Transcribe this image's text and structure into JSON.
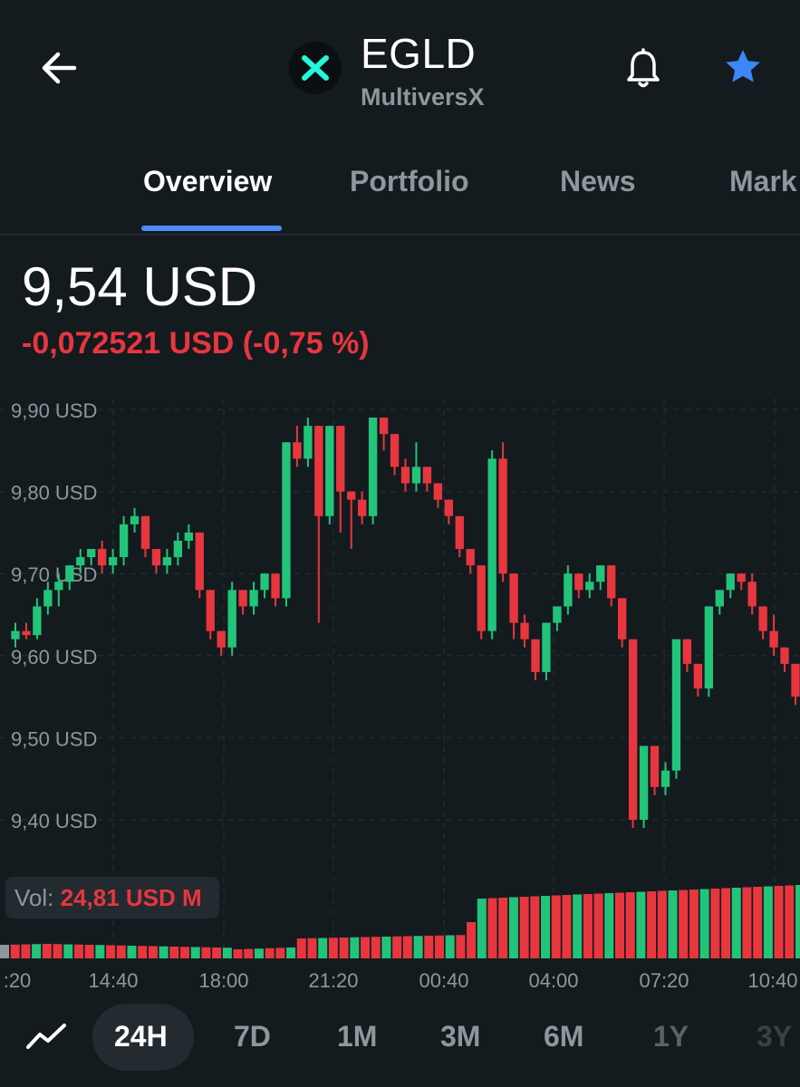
{
  "header": {
    "coin_symbol": "EGLD",
    "coin_name": "MultiversX"
  },
  "tabs": [
    "Overview",
    "Portfolio",
    "News",
    "Mark"
  ],
  "active_tab": "Overview",
  "price": {
    "value": "9,54 USD",
    "change": "-0,072521 USD (-0,75 %)"
  },
  "volume": {
    "label": "Vol:",
    "value": "24,81 USD M"
  },
  "colors": {
    "up": "#22c47a",
    "down": "#e8363f",
    "accent": "#4e8cf7",
    "background": "#141b1f"
  },
  "ranges": [
    "24H",
    "7D",
    "1M",
    "3M",
    "6M",
    "1Y",
    "3Y"
  ],
  "active_range": "24H",
  "chart_data": {
    "type": "candlestick",
    "y_ticks": [
      "9,90 USD",
      "9,80 USD",
      "9,70 USD",
      "9,60 USD",
      "9,50 USD",
      "9,40 USD"
    ],
    "y_tick_values": [
      9.9,
      9.8,
      9.7,
      9.6,
      9.5,
      9.4
    ],
    "x_ticks": [
      ":20",
      "14:40",
      "18:00",
      "21:20",
      "00:40",
      "04:00",
      "07:20",
      "10:40"
    ],
    "candles": [
      [
        9.62,
        9.63,
        9.61,
        9.64
      ],
      [
        9.63,
        9.625,
        9.62,
        9.64
      ],
      [
        9.625,
        9.66,
        9.62,
        9.67
      ],
      [
        9.66,
        9.68,
        9.65,
        9.69
      ],
      [
        9.68,
        9.69,
        9.66,
        9.7
      ],
      [
        9.69,
        9.71,
        9.68,
        9.71
      ],
      [
        9.71,
        9.72,
        9.7,
        9.73
      ],
      [
        9.72,
        9.73,
        9.71,
        9.73
      ],
      [
        9.73,
        9.71,
        9.7,
        9.74
      ],
      [
        9.71,
        9.72,
        9.7,
        9.73
      ],
      [
        9.72,
        9.76,
        9.71,
        9.77
      ],
      [
        9.76,
        9.77,
        9.75,
        9.78
      ],
      [
        9.77,
        9.73,
        9.72,
        9.77
      ],
      [
        9.73,
        9.71,
        9.7,
        9.73
      ],
      [
        9.71,
        9.72,
        9.7,
        9.73
      ],
      [
        9.72,
        9.74,
        9.71,
        9.75
      ],
      [
        9.74,
        9.75,
        9.73,
        9.76
      ],
      [
        9.75,
        9.68,
        9.67,
        9.75
      ],
      [
        9.68,
        9.63,
        9.62,
        9.68
      ],
      [
        9.63,
        9.61,
        9.6,
        9.63
      ],
      [
        9.61,
        9.68,
        9.6,
        9.69
      ],
      [
        9.68,
        9.66,
        9.65,
        9.68
      ],
      [
        9.66,
        9.68,
        9.65,
        9.69
      ],
      [
        9.68,
        9.7,
        9.67,
        9.7
      ],
      [
        9.7,
        9.67,
        9.66,
        9.7
      ],
      [
        9.67,
        9.86,
        9.66,
        9.86
      ],
      [
        9.86,
        9.84,
        9.83,
        9.88
      ],
      [
        9.84,
        9.88,
        9.83,
        9.89
      ],
      [
        9.88,
        9.77,
        9.64,
        9.88
      ],
      [
        9.77,
        9.88,
        9.76,
        9.88
      ],
      [
        9.88,
        9.8,
        9.75,
        9.88
      ],
      [
        9.8,
        9.79,
        9.73,
        9.8
      ],
      [
        9.79,
        9.77,
        9.76,
        9.8
      ],
      [
        9.77,
        9.89,
        9.76,
        9.89
      ],
      [
        9.89,
        9.87,
        9.85,
        9.89
      ],
      [
        9.87,
        9.83,
        9.82,
        9.87
      ],
      [
        9.83,
        9.81,
        9.8,
        9.84
      ],
      [
        9.81,
        9.83,
        9.8,
        9.86
      ],
      [
        9.83,
        9.81,
        9.8,
        9.83
      ],
      [
        9.81,
        9.79,
        9.78,
        9.81
      ],
      [
        9.79,
        9.77,
        9.76,
        9.79
      ],
      [
        9.77,
        9.73,
        9.72,
        9.77
      ],
      [
        9.73,
        9.71,
        9.7,
        9.73
      ],
      [
        9.71,
        9.63,
        9.62,
        9.71
      ],
      [
        9.63,
        9.84,
        9.62,
        9.85
      ],
      [
        9.84,
        9.7,
        9.69,
        9.86
      ],
      [
        9.7,
        9.64,
        9.62,
        9.7
      ],
      [
        9.64,
        9.62,
        9.61,
        9.65
      ],
      [
        9.62,
        9.58,
        9.57,
        9.62
      ],
      [
        9.58,
        9.64,
        9.57,
        9.64
      ],
      [
        9.64,
        9.66,
        9.63,
        9.66
      ],
      [
        9.66,
        9.7,
        9.65,
        9.71
      ],
      [
        9.7,
        9.68,
        9.67,
        9.7
      ],
      [
        9.68,
        9.69,
        9.67,
        9.7
      ],
      [
        9.69,
        9.71,
        9.68,
        9.71
      ],
      [
        9.71,
        9.67,
        9.66,
        9.71
      ],
      [
        9.67,
        9.62,
        9.61,
        9.67
      ],
      [
        9.62,
        9.4,
        9.39,
        9.62
      ],
      [
        9.4,
        9.49,
        9.39,
        9.49
      ],
      [
        9.49,
        9.44,
        9.43,
        9.49
      ],
      [
        9.44,
        9.46,
        9.43,
        9.47
      ],
      [
        9.46,
        9.62,
        9.45,
        9.62
      ],
      [
        9.62,
        9.59,
        9.58,
        9.62
      ],
      [
        9.59,
        9.56,
        9.55,
        9.59
      ],
      [
        9.56,
        9.66,
        9.55,
        9.66
      ],
      [
        9.66,
        9.68,
        9.65,
        9.68
      ],
      [
        9.68,
        9.7,
        9.67,
        9.7
      ],
      [
        9.7,
        9.69,
        9.68,
        9.7
      ],
      [
        9.69,
        9.66,
        9.65,
        9.7
      ],
      [
        9.66,
        9.63,
        9.62,
        9.66
      ],
      [
        9.63,
        9.61,
        9.6,
        9.65
      ],
      [
        9.61,
        9.59,
        9.58,
        9.61
      ],
      [
        9.59,
        9.55,
        9.54,
        9.59
      ]
    ],
    "volumes": []
  }
}
